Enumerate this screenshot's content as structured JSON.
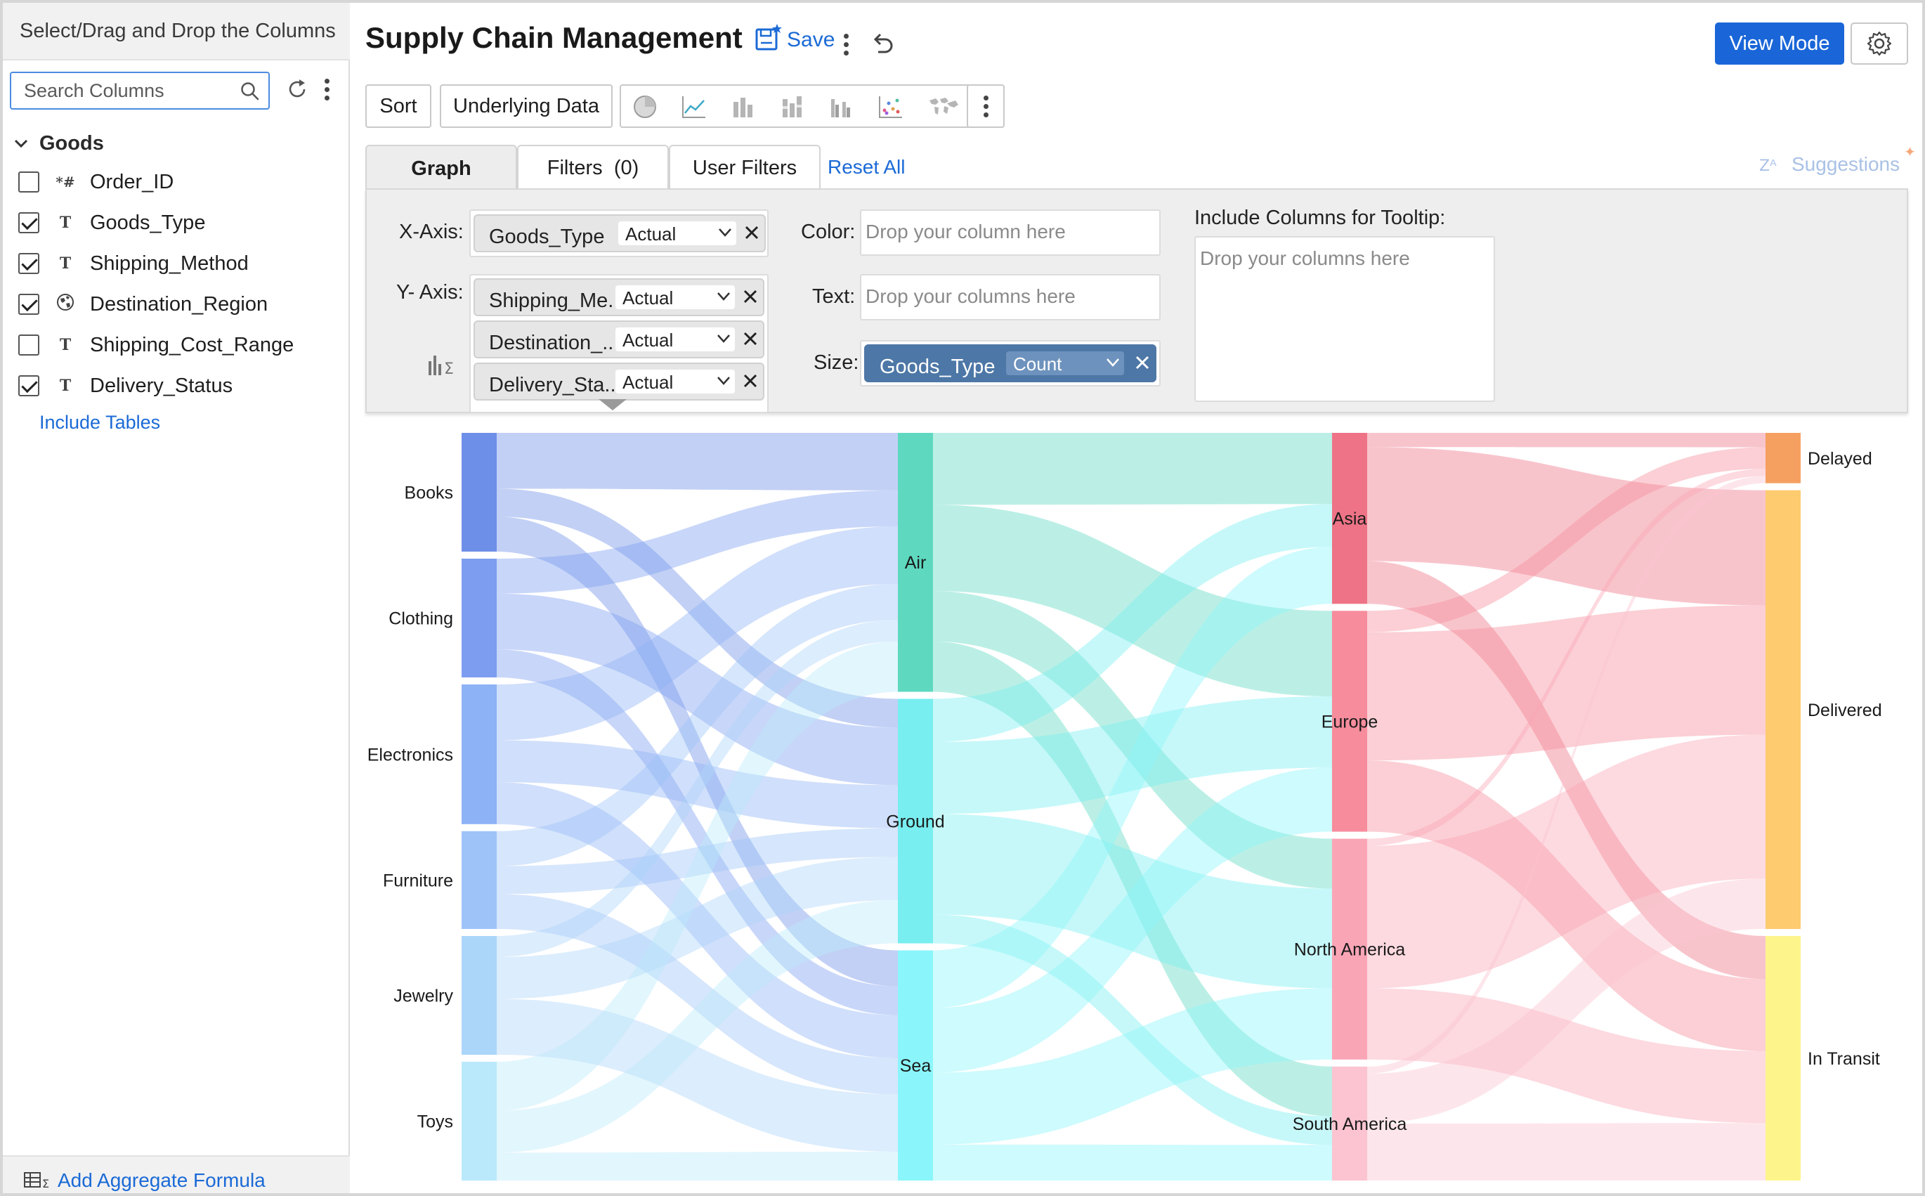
{
  "left_panel": {
    "header": "Select/Drag and Drop the Columns",
    "search_placeholder": "Search Columns",
    "table_name": "Goods",
    "columns": [
      {
        "label": "Order_ID",
        "type_icon": "*#",
        "checked": false
      },
      {
        "label": "Goods_Type",
        "type_icon": "T",
        "checked": true
      },
      {
        "label": "Shipping_Method",
        "type_icon": "T",
        "checked": true
      },
      {
        "label": "Destination_Region",
        "type_icon": "globe-icon",
        "checked": true
      },
      {
        "label": "Shipping_Cost_Range",
        "type_icon": "T",
        "checked": false
      },
      {
        "label": "Delivery_Status",
        "type_icon": "T",
        "checked": true
      }
    ],
    "include_tables": "Include Tables",
    "add_aggregate_formula": "Add Aggregate Formula"
  },
  "header": {
    "title": "Supply Chain Management",
    "save_label": "Save",
    "view_mode_label": "View Mode"
  },
  "toolbar": {
    "sort_label": "Sort",
    "underlying_data_label": "Underlying Data",
    "chart_type_icons": [
      "pie-chart-icon",
      "line-chart-icon",
      "bar-chart-icon",
      "stacked-bar-icon",
      "grouped-bar-icon",
      "scatter-chart-icon",
      "map-chart-icon"
    ]
  },
  "tabs": {
    "graph": "Graph",
    "filters": "Filters",
    "filters_count": "(0)",
    "user_filters": "User Filters",
    "reset_all": "Reset All",
    "suggestions": "Suggestions"
  },
  "config": {
    "x_axis_label": "X-Axis:",
    "y_axis_label": "Y- Axis:",
    "x_axis": {
      "column": "Goods_Type",
      "aggregation": "Actual"
    },
    "y_axis": [
      {
        "column": "Shipping_Me...",
        "aggregation": "Actual"
      },
      {
        "column": "Destination_...",
        "aggregation": "Actual"
      },
      {
        "column": "Delivery_Sta...",
        "aggregation": "Actual"
      }
    ],
    "color_label": "Color:",
    "color_placeholder": "Drop your column here",
    "text_label": "Text:",
    "text_placeholder": "Drop your columns here",
    "size_label": "Size:",
    "size": {
      "column": "Goods_Type",
      "aggregation": "Count"
    },
    "tooltip_label": "Include Columns for Tooltip:",
    "tooltip_placeholder": "Drop your columns here"
  },
  "colors": {
    "accent": "#1a66d8",
    "link": "#1b6ad6",
    "size_pill": "#4d77a6"
  },
  "chart_data": {
    "type": "sankey",
    "stages": [
      {
        "name": "Goods_Type",
        "nodes": [
          "Books",
          "Clothing",
          "Electronics",
          "Furniture",
          "Jewelry",
          "Toys"
        ]
      },
      {
        "name": "Shipping_Method",
        "nodes": [
          "Air",
          "Ground",
          "Sea"
        ]
      },
      {
        "name": "Destination_Region",
        "nodes": [
          "Asia",
          "Europe",
          "North America",
          "South America"
        ]
      },
      {
        "name": "Delivery_Status",
        "nodes": [
          "Delayed",
          "Delivered",
          "In Transit"
        ]
      }
    ],
    "node_colors": {
      "Books": "#6e8fe8",
      "Clothing": "#7d9df0",
      "Electronics": "#8eb2f6",
      "Furniture": "#9ec3f8",
      "Jewelry": "#acd5fa",
      "Toys": "#b9e9fb",
      "Air": "#5ed9c0",
      "Ground": "#78eef0",
      "Sea": "#8af6fb",
      "Asia": "#ee7386",
      "Europe": "#f68c9c",
      "North America": "#faa5b6",
      "South America": "#fbc4d0",
      "Delayed": "#f5a060",
      "Delivered": "#fecb6f",
      "In Transit": "#fdf58c"
    },
    "links": [
      {
        "source": "Books",
        "target": "Air",
        "value": 8
      },
      {
        "source": "Books",
        "target": "Ground",
        "value": 4
      },
      {
        "source": "Books",
        "target": "Sea",
        "value": 5
      },
      {
        "source": "Clothing",
        "target": "Air",
        "value": 5
      },
      {
        "source": "Clothing",
        "target": "Ground",
        "value": 8
      },
      {
        "source": "Clothing",
        "target": "Sea",
        "value": 4
      },
      {
        "source": "Electronics",
        "target": "Air",
        "value": 8
      },
      {
        "source": "Electronics",
        "target": "Ground",
        "value": 6
      },
      {
        "source": "Electronics",
        "target": "Sea",
        "value": 6
      },
      {
        "source": "Furniture",
        "target": "Air",
        "value": 5
      },
      {
        "source": "Furniture",
        "target": "Ground",
        "value": 4
      },
      {
        "source": "Furniture",
        "target": "Sea",
        "value": 5
      },
      {
        "source": "Jewelry",
        "target": "Air",
        "value": 3
      },
      {
        "source": "Jewelry",
        "target": "Ground",
        "value": 6
      },
      {
        "source": "Jewelry",
        "target": "Sea",
        "value": 8
      },
      {
        "source": "Toys",
        "target": "Air",
        "value": 7
      },
      {
        "source": "Toys",
        "target": "Ground",
        "value": 6
      },
      {
        "source": "Toys",
        "target": "Sea",
        "value": 4
      },
      {
        "source": "Air",
        "target": "Asia",
        "value": 10
      },
      {
        "source": "Air",
        "target": "Europe",
        "value": 12
      },
      {
        "source": "Air",
        "target": "North America",
        "value": 7
      },
      {
        "source": "Air",
        "target": "South America",
        "value": 7
      },
      {
        "source": "Ground",
        "target": "Asia",
        "value": 6
      },
      {
        "source": "Ground",
        "target": "Europe",
        "value": 10
      },
      {
        "source": "Ground",
        "target": "North America",
        "value": 14
      },
      {
        "source": "Ground",
        "target": "South America",
        "value": 4
      },
      {
        "source": "Sea",
        "target": "Asia",
        "value": 8
      },
      {
        "source": "Sea",
        "target": "Europe",
        "value": 9
      },
      {
        "source": "Sea",
        "target": "North America",
        "value": 10
      },
      {
        "source": "Sea",
        "target": "South America",
        "value": 5
      },
      {
        "source": "Asia",
        "target": "Delayed",
        "value": 2
      },
      {
        "source": "Asia",
        "target": "Delivered",
        "value": 16
      },
      {
        "source": "Asia",
        "target": "In Transit",
        "value": 6
      },
      {
        "source": "Europe",
        "target": "Delayed",
        "value": 3
      },
      {
        "source": "Europe",
        "target": "Delivered",
        "value": 18
      },
      {
        "source": "Europe",
        "target": "In Transit",
        "value": 10
      },
      {
        "source": "North America",
        "target": "Delayed",
        "value": 1
      },
      {
        "source": "North America",
        "target": "Delivered",
        "value": 20
      },
      {
        "source": "North America",
        "target": "In Transit",
        "value": 10
      },
      {
        "source": "South America",
        "target": "Delayed",
        "value": 1
      },
      {
        "source": "South America",
        "target": "Delivered",
        "value": 7
      },
      {
        "source": "South America",
        "target": "In Transit",
        "value": 8
      }
    ]
  }
}
